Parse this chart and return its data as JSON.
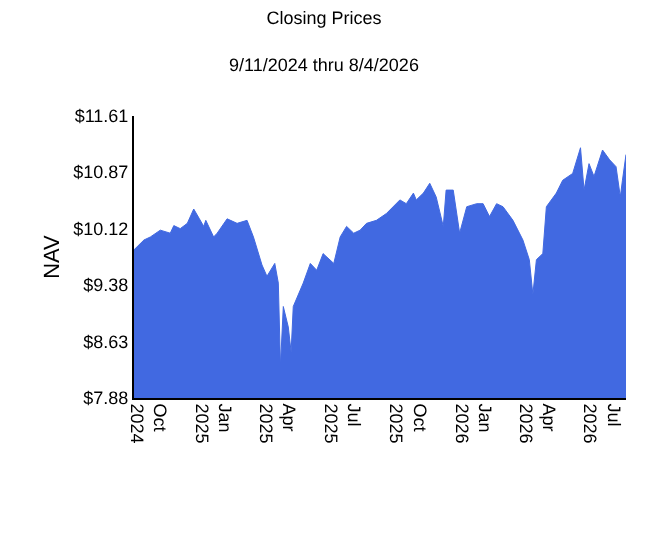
{
  "chart_data": {
    "type": "area",
    "title": "Closing Prices",
    "subtitle": "9/11/2024 thru 8/4/2026",
    "ylabel": "NAV",
    "x": [
      "2024-09-11",
      "2024-09-25",
      "2024-10-04",
      "2024-10-18",
      "2024-11-01",
      "2024-11-06",
      "2024-11-15",
      "2024-11-25",
      "2024-12-04",
      "2024-12-12",
      "2024-12-18",
      "2024-12-21",
      "2025-01-01",
      "2025-01-06",
      "2025-01-20",
      "2025-02-03",
      "2025-02-17",
      "2025-02-26",
      "2025-03-10",
      "2025-03-17",
      "2025-03-28",
      "2025-04-02",
      "2025-04-05",
      "2025-04-09",
      "2025-04-16",
      "2025-04-20",
      "2025-04-23",
      "2025-05-07",
      "2025-05-17",
      "2025-05-26",
      "2025-06-04",
      "2025-06-19",
      "2025-06-28",
      "2025-07-07",
      "2025-07-17",
      "2025-07-26",
      "2025-08-04",
      "2025-08-18",
      "2025-09-01",
      "2025-09-20",
      "2025-09-29",
      "2025-10-09",
      "2025-10-13",
      "2025-10-23",
      "2025-11-01",
      "2025-11-10",
      "2025-11-20",
      "2025-11-24",
      "2025-12-04",
      "2025-12-13",
      "2025-12-23",
      "2026-01-06",
      "2026-01-15",
      "2026-01-24",
      "2026-02-03",
      "2026-02-12",
      "2026-02-26",
      "2026-03-12",
      "2026-03-21",
      "2026-03-26",
      "2026-03-31",
      "2026-04-09",
      "2026-04-14",
      "2026-04-28",
      "2026-05-07",
      "2026-05-21",
      "2026-06-01",
      "2026-06-06",
      "2026-06-13",
      "2026-06-20",
      "2026-07-02",
      "2026-07-12",
      "2026-07-21",
      "2026-07-27",
      "2026-07-30",
      "2026-08-04"
    ],
    "series": [
      {
        "color": "#4169e1",
        "values": [
          9.84,
          9.97,
          10.01,
          10.1,
          10.06,
          10.16,
          10.12,
          10.19,
          10.38,
          10.25,
          10.15,
          10.23,
          10.01,
          10.06,
          10.25,
          10.19,
          10.23,
          10.01,
          9.64,
          9.49,
          9.66,
          9.4,
          8.3,
          9.09,
          8.82,
          8.49,
          9.09,
          9.4,
          9.66,
          9.57,
          9.79,
          9.66,
          10.01,
          10.15,
          10.06,
          10.1,
          10.19,
          10.23,
          10.32,
          10.5,
          10.45,
          10.59,
          10.5,
          10.59,
          10.72,
          10.54,
          10.15,
          10.63,
          10.63,
          10.06,
          10.41,
          10.45,
          10.45,
          10.28,
          10.45,
          10.41,
          10.23,
          9.97,
          9.71,
          9.25,
          9.71,
          9.79,
          10.41,
          10.59,
          10.76,
          10.85,
          11.19,
          10.63,
          10.98,
          10.81,
          11.16,
          11.03,
          10.94,
          10.54,
          10.76,
          11.1
        ]
      }
    ],
    "xlim": [
      "2024-09-11",
      "2026-08-04"
    ],
    "xticks": [
      {
        "value": "2024-10-01",
        "label": "Oct 2024"
      },
      {
        "value": "2025-01-01",
        "label": "Jan 2025"
      },
      {
        "value": "2025-04-01",
        "label": "Apr 2025"
      },
      {
        "value": "2025-07-01",
        "label": "Jul 2025"
      },
      {
        "value": "2025-10-01",
        "label": "Oct 2025"
      },
      {
        "value": "2026-01-01",
        "label": "Jan 2026"
      },
      {
        "value": "2026-04-01",
        "label": "Apr 2026"
      },
      {
        "value": "2026-07-01",
        "label": "Jul 2026"
      }
    ],
    "ylim": [
      7.88,
      11.61
    ],
    "yticks": [
      {
        "value": 7.88,
        "label": "$7.88"
      },
      {
        "value": 8.63,
        "label": "$8.63"
      },
      {
        "value": 9.38,
        "label": "$9.38"
      },
      {
        "value": 10.12,
        "label": "$10.12"
      },
      {
        "value": 10.87,
        "label": "$10.87"
      },
      {
        "value": 11.61,
        "label": "$11.61"
      }
    ],
    "tick_labels": "xy"
  }
}
